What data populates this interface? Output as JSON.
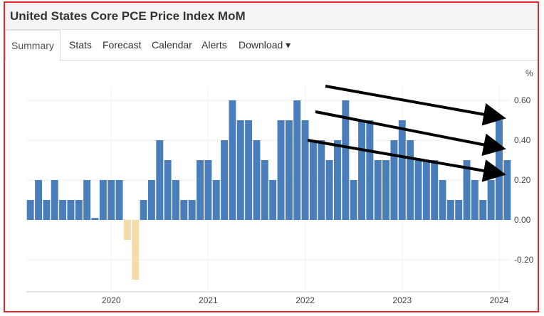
{
  "header": {
    "title": "United States Core PCE Price Index MoM"
  },
  "tabs": [
    {
      "label": "Summary",
      "active": true
    },
    {
      "label": "Stats"
    },
    {
      "label": "Forecast"
    },
    {
      "label": "Calendar"
    },
    {
      "label": "Alerts"
    },
    {
      "label": "Download ▾"
    }
  ],
  "colors": {
    "positive": "#4a7ebb",
    "negative": "#f5dcab",
    "border": "#e8262b"
  },
  "chart_data": {
    "type": "bar",
    "title": "United States Core PCE Price Index MoM",
    "ylabel": "%",
    "ylim": [
      -0.34,
      0.66
    ],
    "yticks": [
      "0.60",
      "0.40",
      "0.20",
      "0.00",
      "-0.20"
    ],
    "ytick_values": [
      0.6,
      0.4,
      0.2,
      0.0,
      -0.2
    ],
    "xticks": [
      {
        "label": "2020",
        "index": 10
      },
      {
        "label": "2021",
        "index": 22
      },
      {
        "label": "2022",
        "index": 34
      },
      {
        "label": "2023",
        "index": 46
      },
      {
        "label": "2024",
        "index": 58
      }
    ],
    "start": "2019-03",
    "end": "2024-02",
    "values": [
      0.1,
      0.2,
      0.1,
      0.2,
      0.1,
      0.1,
      0.1,
      0.2,
      0.01,
      0.2,
      0.2,
      0.2,
      -0.1,
      -0.3,
      0.1,
      0.2,
      0.4,
      0.3,
      0.2,
      0.1,
      0.1,
      0.3,
      0.3,
      0.2,
      0.4,
      0.6,
      0.5,
      0.5,
      0.4,
      0.3,
      0.2,
      0.5,
      0.5,
      0.6,
      0.5,
      0.4,
      0.4,
      0.3,
      0.4,
      0.6,
      0.2,
      0.5,
      0.5,
      0.3,
      0.3,
      0.4,
      0.5,
      0.4,
      0.3,
      0.3,
      0.3,
      0.2,
      0.1,
      0.1,
      0.3,
      0.2,
      0.1,
      0.2,
      0.5,
      0.3
    ],
    "grid": true,
    "annotations": "three downward-trend arrows"
  }
}
